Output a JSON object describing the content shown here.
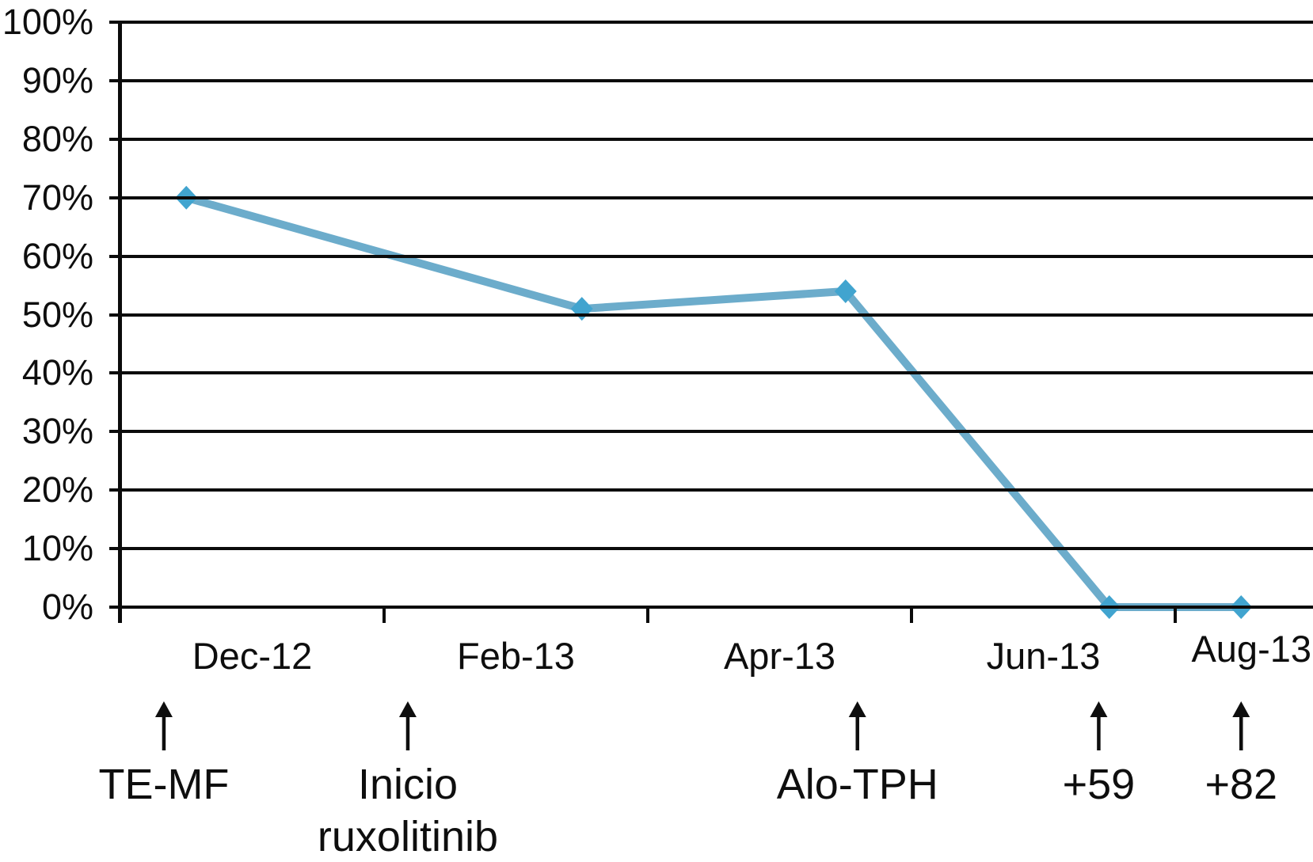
{
  "chart_data": {
    "type": "line",
    "title": "",
    "xlabel": "",
    "ylabel": "",
    "grid": "horizontal",
    "legend": "none",
    "y_axis": {
      "min": 0,
      "max": 100,
      "step": 10,
      "tick_labels": [
        "100%",
        "90%",
        "80%",
        "70%",
        "60%",
        "50%",
        "40%",
        "30%",
        "20%",
        "10%",
        "0%"
      ],
      "tick_values": [
        100,
        90,
        80,
        70,
        60,
        50,
        40,
        30,
        20,
        10,
        0
      ]
    },
    "x_axis": {
      "unit": "month",
      "tick_labels": [
        "Dec-12",
        "Feb-13",
        "Apr-13",
        "Jun-13",
        "Aug-13"
      ],
      "tick_label_months": [
        1,
        3,
        5,
        7,
        9
      ],
      "tick_mark_months": [
        0,
        2,
        4,
        6,
        8
      ]
    },
    "series": [
      {
        "name": "",
        "marker": "diamond",
        "points": [
          {
            "x_month": 0.5,
            "value": 70
          },
          {
            "x_month": 3.5,
            "value": 51
          },
          {
            "x_month": 5.5,
            "value": 54
          },
          {
            "x_month": 7.5,
            "value": 0
          },
          {
            "x_month": 8.5,
            "value": 0
          }
        ]
      }
    ],
    "annotations": [
      {
        "lines": [
          "TE-MF"
        ],
        "x_month": 0.33
      },
      {
        "lines": [
          "Inicio",
          "ruxolitinib"
        ],
        "x_month": 2.18
      },
      {
        "lines": [
          "Alo-TPH"
        ],
        "x_month": 5.59
      },
      {
        "lines": [
          "+59"
        ],
        "x_month": 7.42
      },
      {
        "lines": [
          "+82"
        ],
        "x_month": 8.5
      }
    ]
  },
  "colors": {
    "line": "#6CACCB",
    "marker": "#41A4CF",
    "axis": "#0b0b0b",
    "text": "#0e0e0e",
    "background": "#ffffff"
  }
}
